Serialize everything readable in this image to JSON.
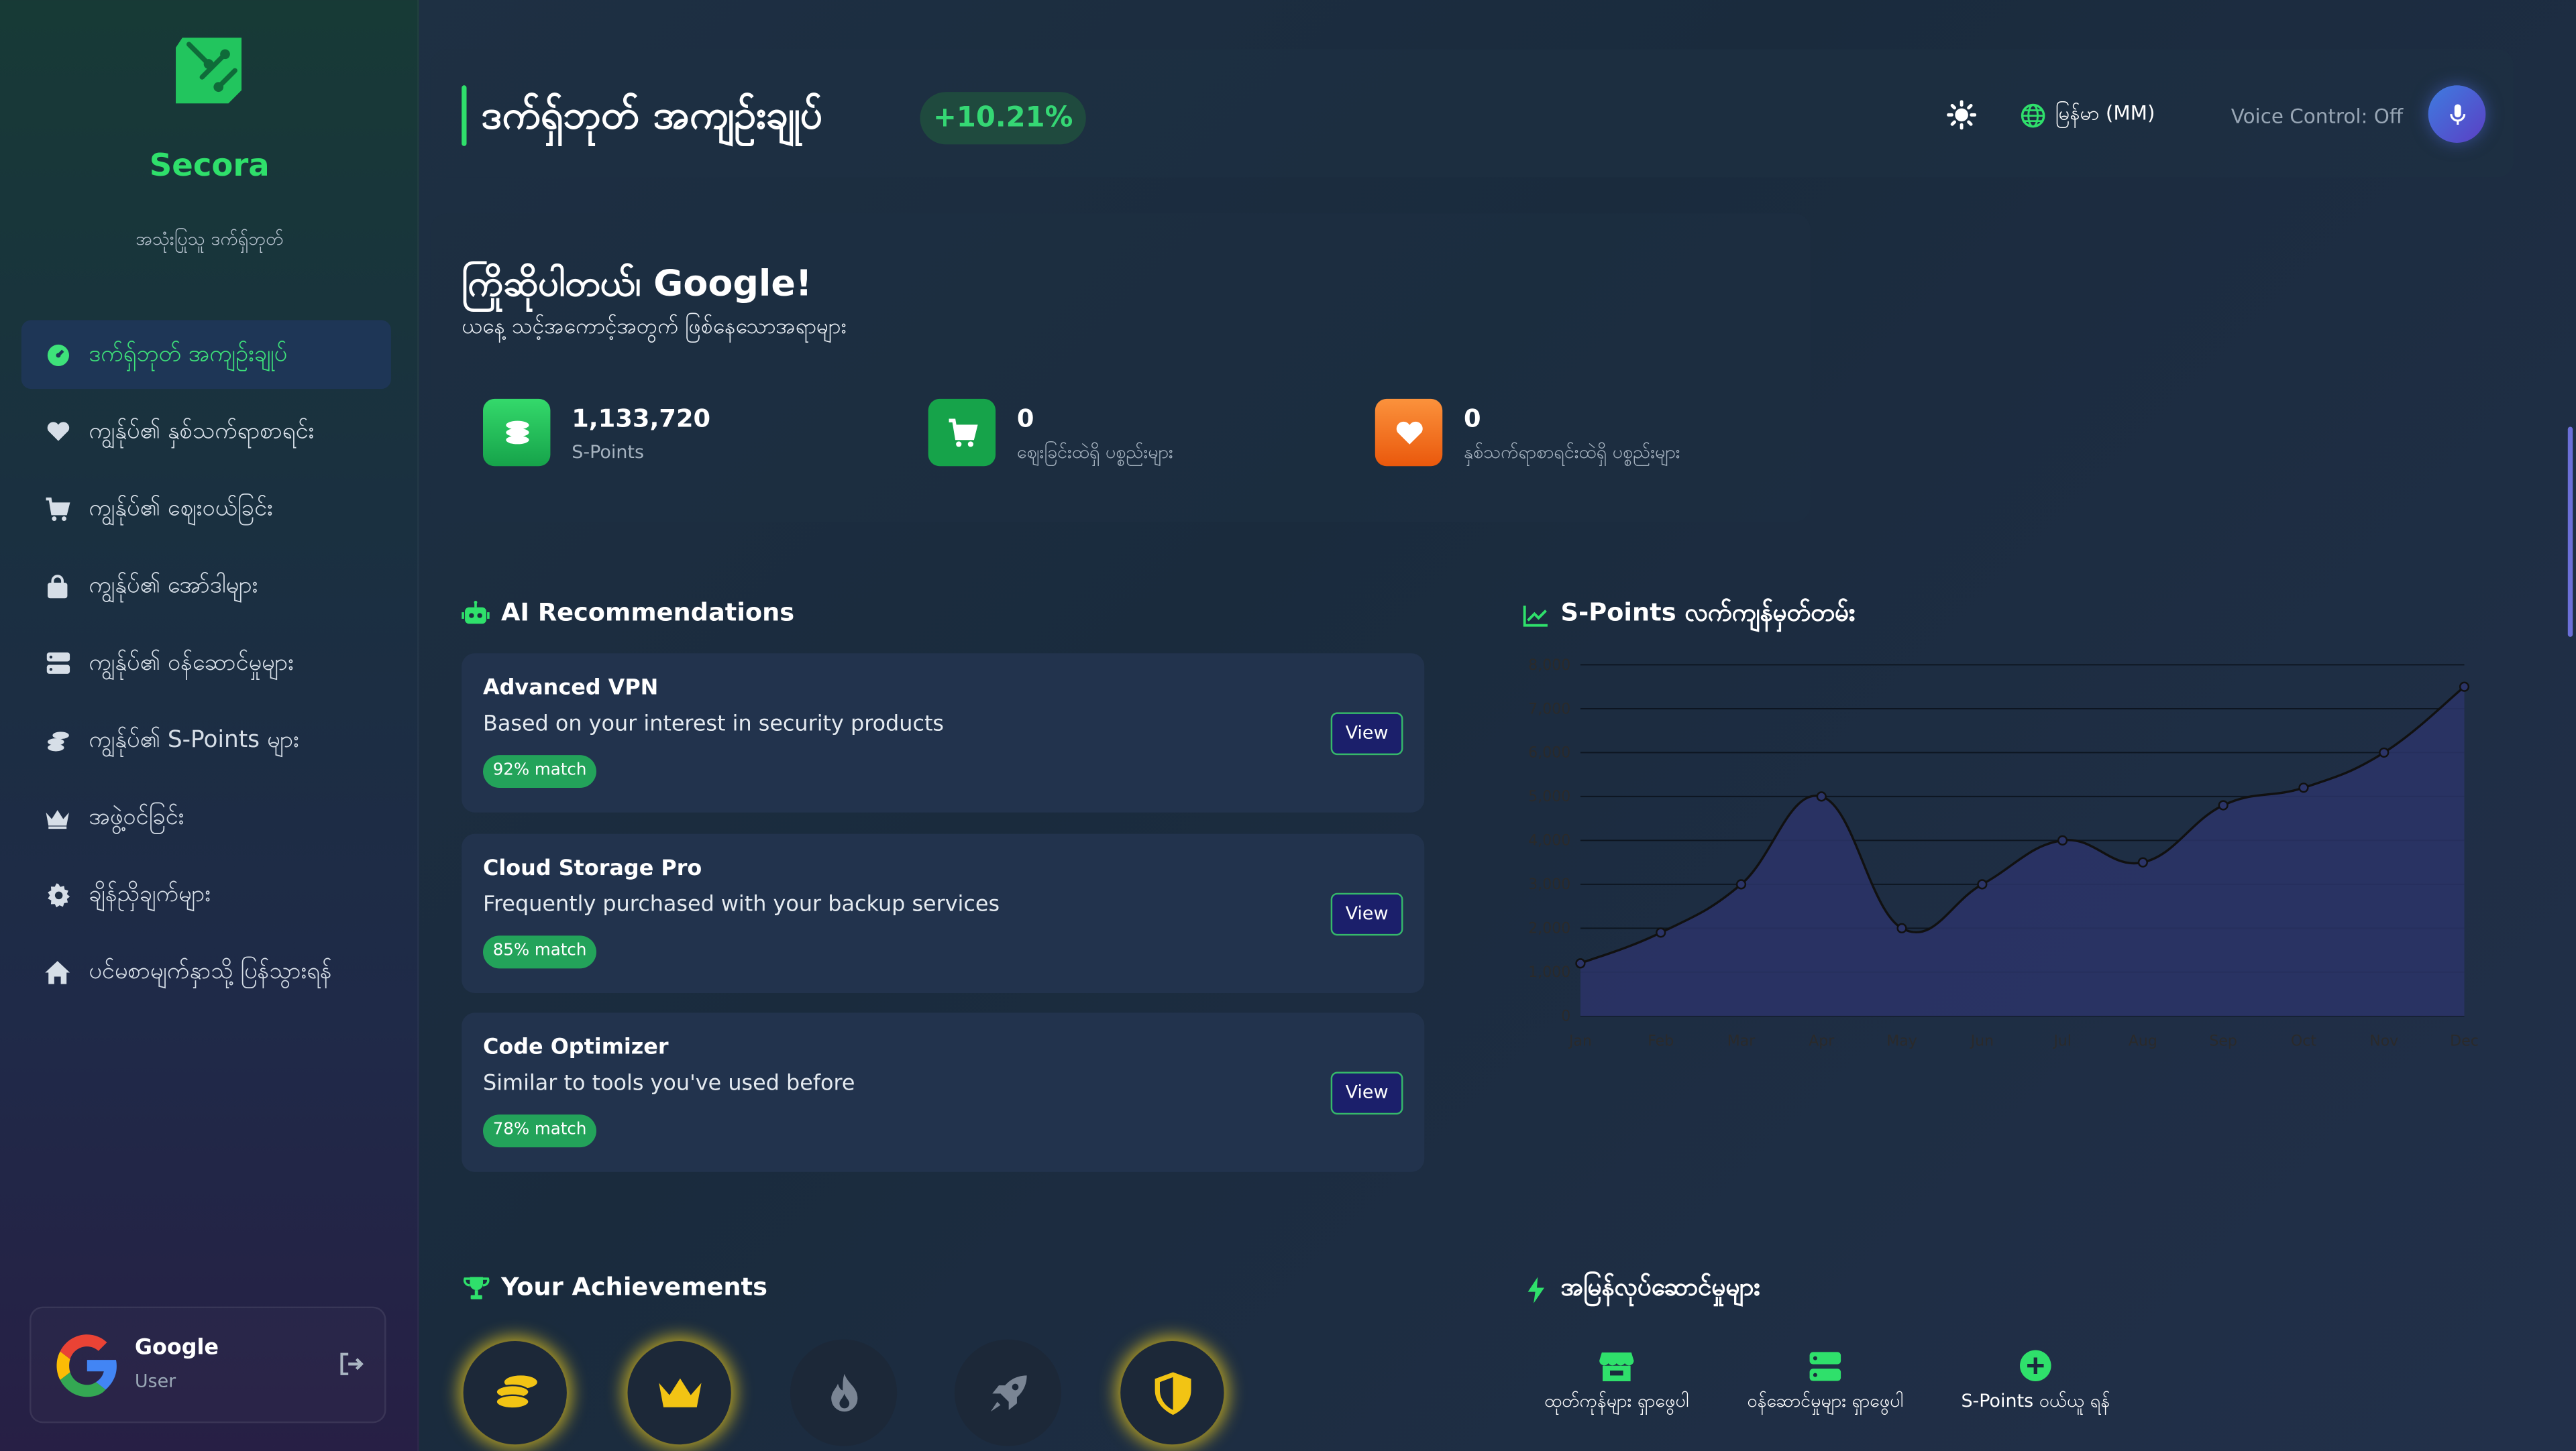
{
  "brand": {
    "name": "Secora",
    "tagline": "အသုံးပြုသူ ဒက်ရှ်ဘုတ်"
  },
  "sidebar": {
    "items": [
      {
        "label": "ဒက်ရှ်ဘုတ် အကျဉ်းချုပ်",
        "icon": "dashboard-icon",
        "active": true
      },
      {
        "label": "ကျွန်ုပ်၏ နှစ်သက်ရာစာရင်း",
        "icon": "heart-icon",
        "active": false
      },
      {
        "label": "ကျွန်ုပ်၏ ဈေးဝယ်ခြင်း",
        "icon": "cart-icon",
        "active": false
      },
      {
        "label": "ကျွန်ုပ်၏ အော်ဒါများ",
        "icon": "bag-icon",
        "active": false
      },
      {
        "label": "ကျွန်ုပ်၏ ဝန်ဆောင်မှုများ",
        "icon": "server-icon",
        "active": false
      },
      {
        "label": "ကျွန်ုပ်၏ S-Points များ",
        "icon": "coins-icon",
        "active": false
      },
      {
        "label": "အဖွဲ့ဝင်ခြင်း",
        "icon": "crown-icon",
        "active": false
      },
      {
        "label": "ချိန်ညှိချက်များ",
        "icon": "gear-icon",
        "active": false
      },
      {
        "label": "ပင်မစာမျက်နှာသို့ ပြန်သွားရန်",
        "icon": "home-icon",
        "active": false
      }
    ]
  },
  "user": {
    "name": "Google",
    "role": "User"
  },
  "header": {
    "title": "ဒက်ရှ်ဘုတ် အကျဉ်းချုပ်",
    "change": "+10.21%",
    "language": "မြန်မာ (MM)",
    "voice_control": "Voice Control: Off"
  },
  "welcome": {
    "title": "ကြိုဆိုပါတယ်၊ Google!",
    "subtitle": "ယနေ့ သင့်အကောင့်အတွက် ဖြစ်နေသောအရာများ",
    "stats": [
      {
        "value": "1,133,720",
        "label": "S-Points",
        "color": "#22c55e"
      },
      {
        "value": "0",
        "label": "ဈေးခြင်းထဲရှိ ပစ္စည်းများ",
        "color": "#16a34a"
      },
      {
        "value": "0",
        "label": "နှစ်သက်ရာစာရင်းထဲရှိ ပစ္စည်းများ",
        "color": "#f97316"
      }
    ]
  },
  "recommendations": {
    "title": "AI Recommendations",
    "view_label": "View",
    "items": [
      {
        "name": "Advanced VPN",
        "reason": "Based on your interest in security products",
        "match": "92% match"
      },
      {
        "name": "Cloud Storage Pro",
        "reason": "Frequently purchased with your backup services",
        "match": "85% match"
      },
      {
        "name": "Code Optimizer",
        "reason": "Similar to tools you've used before",
        "match": "78% match"
      }
    ]
  },
  "chart_data": {
    "type": "area",
    "title": "S-Points လက်ကျန်မှတ်တမ်း",
    "categories": [
      "Jan",
      "Feb",
      "Mar",
      "Apr",
      "May",
      "Jun",
      "Jul",
      "Aug",
      "Sep",
      "Oct",
      "Nov",
      "Dec"
    ],
    "series": [
      {
        "values": [
          1200,
          1900,
          3000,
          5000,
          2000,
          3000,
          4000,
          3500,
          4800,
          5200,
          6000,
          7500
        ]
      }
    ],
    "yticks": [
      "0",
      "1,000",
      "2,000",
      "3,000",
      "4,000",
      "5,000",
      "6,000",
      "7,000",
      "8,000"
    ],
    "ylim": [
      0,
      8000
    ],
    "grid": true,
    "fill_color": "#2b3468",
    "line_color": "#111111"
  },
  "achievements": {
    "title": "Your Achievements",
    "badges": [
      {
        "icon": "coins-icon",
        "unlocked": true
      },
      {
        "icon": "crown-icon",
        "unlocked": true
      },
      {
        "icon": "fire-icon",
        "unlocked": false
      },
      {
        "icon": "rocket-icon",
        "unlocked": false
      },
      {
        "icon": "shield-icon",
        "unlocked": true
      }
    ]
  },
  "quick_actions": {
    "title": "အမြန်လုပ်ဆောင်မှုများ",
    "items": [
      {
        "label": "ထုတ်ကုန်များ ရှာဖွေပါ",
        "icon": "store-icon"
      },
      {
        "label": "ဝန်ဆောင်မှုများ ရှာဖွေပါ",
        "icon": "server-icon"
      },
      {
        "label": "S-Points ဝယ်ယူ ရန်",
        "icon": "plus-circle-icon"
      }
    ]
  },
  "colors": {
    "accent": "#2fe06b",
    "gold": "#f2c414"
  }
}
